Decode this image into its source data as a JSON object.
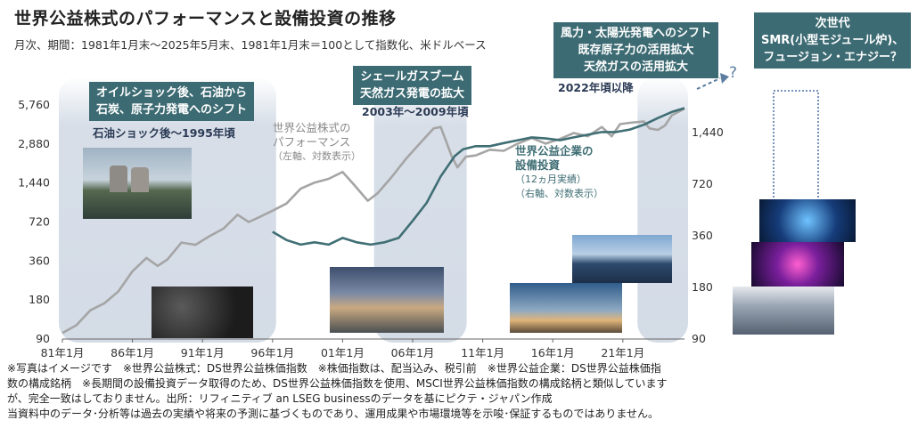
{
  "title": "世界公益株式のパフォーマンスと設備投資の推移",
  "subtitle": "月次、期間：1981年1月末～2025年5月末、1981年1月末＝100として指数化、米ドルベース",
  "colors": {
    "equity": "#a5a5a5",
    "capex": "#3f6e74",
    "callout_bg": "#3d6b73",
    "band": "#b7c4d6",
    "arrow": "#5b7ea0"
  },
  "callouts": {
    "oil": [
      "オイルショック後、石油から",
      "石炭、原子力発電へのシフト"
    ],
    "shale": [
      "シェールガスブーム",
      "天然ガス発電の拡大"
    ],
    "renew": [
      "風力・太陽光発電へのシフト",
      "既存原子力の活用拡大",
      "天然ガスの活用拡大"
    ],
    "next": [
      "次世代",
      "SMR(小型モジュール炉)、",
      "フュージョン・エナジー？"
    ]
  },
  "periods": {
    "oil": "石油ショック後～1995年頃",
    "shale": "2003年～2009年頃",
    "renew": "2022年頃以降"
  },
  "question_mark": "?",
  "series_labels": {
    "equity": [
      "世界公益株式の",
      "パフォーマンス",
      "（左軸、対数表示）"
    ],
    "capex": [
      "世界公益企業の",
      "設備投資",
      "（12ヵ月実績）",
      "（右軸、対数表示）"
    ]
  },
  "photos": [
    "power-plant-cooling-towers",
    "coal-pile",
    "gas-power-plant",
    "wind-solar-farm",
    "power-transmission-lines",
    "nuclear-reactor-core",
    "fusion-plasma-device",
    "smr-module"
  ],
  "notes": [
    "※写真はイメージです　※世界公益株式：DS世界公益株価指数　※株価指数は、配当込み、税引前　※世界公益企業：DS世界公益株価指",
    "数の構成銘柄　※長期間の設備投資データ取得のため、DS世界公益株価指数を使用、MSCI世界公益株価指数の構成銘柄と類似しています",
    "が、完全一致はしておりません。出所：リフィニティブ an LSEG businessのデータを基にピクテ・ジャパン作成",
    "当資料中のデータ･分析等は過去の実績や将来の予測に基づくものであり、運用成果や市場環境等を示唆･保証するものではありません。"
  ],
  "chart_data": {
    "type": "line",
    "x_ticks": [
      "81年1月",
      "86年1月",
      "91年1月",
      "96年1月",
      "01年1月",
      "06年1月",
      "11年1月",
      "16年1月",
      "21年1月"
    ],
    "y_left_ticks": [
      5760,
      2880,
      1440,
      720,
      360,
      180,
      90
    ],
    "y_right_ticks": [
      1440,
      720,
      360,
      180,
      90
    ],
    "y_left_label": "",
    "y_right_label": "",
    "scale": "log",
    "ylim_left": [
      90,
      5760
    ],
    "ylim_right": [
      90,
      2040
    ],
    "shaded_periods": [
      [
        1981.0,
        1996.0
      ],
      [
        2003.5,
        2009.6
      ],
      [
        2022.3,
        2025.4
      ]
    ],
    "series": [
      {
        "name": "世界公益株式のパフォーマンス",
        "axis": "left",
        "points": [
          [
            1981.0,
            100
          ],
          [
            1982.0,
            115
          ],
          [
            1983.0,
            150
          ],
          [
            1984.0,
            170
          ],
          [
            1985.0,
            210
          ],
          [
            1986.0,
            300
          ],
          [
            1987.0,
            380
          ],
          [
            1987.8,
            330
          ],
          [
            1988.5,
            370
          ],
          [
            1989.5,
            500
          ],
          [
            1990.5,
            480
          ],
          [
            1991.5,
            560
          ],
          [
            1992.5,
            640
          ],
          [
            1993.5,
            820
          ],
          [
            1994.3,
            720
          ],
          [
            1995.0,
            780
          ],
          [
            1996.0,
            880
          ],
          [
            1997.0,
            1000
          ],
          [
            1998.0,
            1300
          ],
          [
            1999.0,
            1450
          ],
          [
            2000.0,
            1550
          ],
          [
            2001.0,
            1750
          ],
          [
            2001.8,
            1400
          ],
          [
            2002.8,
            1050
          ],
          [
            2003.5,
            1200
          ],
          [
            2004.5,
            1600
          ],
          [
            2005.5,
            2200
          ],
          [
            2006.5,
            2900
          ],
          [
            2007.5,
            3800
          ],
          [
            2008.0,
            3900
          ],
          [
            2008.8,
            2300
          ],
          [
            2009.2,
            1900
          ],
          [
            2009.8,
            2300
          ],
          [
            2010.5,
            2350
          ],
          [
            2011.5,
            2600
          ],
          [
            2012.5,
            2550
          ],
          [
            2013.5,
            2900
          ],
          [
            2014.5,
            3200
          ],
          [
            2015.5,
            2900
          ],
          [
            2016.5,
            3150
          ],
          [
            2017.5,
            3500
          ],
          [
            2018.5,
            3300
          ],
          [
            2019.5,
            3900
          ],
          [
            2020.2,
            3300
          ],
          [
            2020.8,
            4100
          ],
          [
            2021.5,
            4200
          ],
          [
            2022.5,
            4300
          ],
          [
            2022.9,
            3800
          ],
          [
            2023.5,
            3700
          ],
          [
            2024.0,
            4000
          ],
          [
            2024.5,
            4800
          ],
          [
            2025.4,
            5400
          ]
        ]
      },
      {
        "name": "世界公益企業の設備投資",
        "axis": "right",
        "points": [
          [
            1996.0,
            380
          ],
          [
            1997.0,
            340
          ],
          [
            1998.0,
            320
          ],
          [
            1999.0,
            330
          ],
          [
            2000.0,
            320
          ],
          [
            2001.0,
            350
          ],
          [
            2002.0,
            330
          ],
          [
            2003.0,
            320
          ],
          [
            2004.0,
            330
          ],
          [
            2005.0,
            350
          ],
          [
            2006.0,
            440
          ],
          [
            2007.0,
            560
          ],
          [
            2008.0,
            800
          ],
          [
            2009.0,
            1050
          ],
          [
            2009.6,
            1150
          ],
          [
            2010.5,
            1200
          ],
          [
            2011.5,
            1200
          ],
          [
            2012.5,
            1250
          ],
          [
            2013.5,
            1300
          ],
          [
            2014.5,
            1350
          ],
          [
            2015.5,
            1330
          ],
          [
            2016.5,
            1300
          ],
          [
            2017.5,
            1350
          ],
          [
            2018.5,
            1400
          ],
          [
            2019.5,
            1450
          ],
          [
            2020.5,
            1450
          ],
          [
            2021.5,
            1500
          ],
          [
            2022.5,
            1600
          ],
          [
            2023.5,
            1750
          ],
          [
            2024.5,
            1900
          ],
          [
            2025.4,
            2000
          ]
        ]
      }
    ]
  }
}
